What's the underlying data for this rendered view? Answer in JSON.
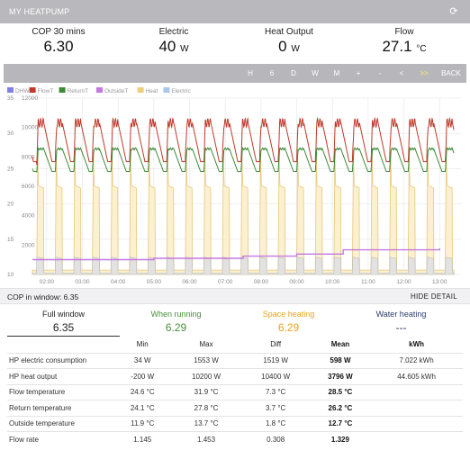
{
  "header": {
    "title": "MY HEATPUMP",
    "refresh_icon": "refresh-icon"
  },
  "stats": [
    {
      "label": "COP 30 mins",
      "value": "6.30",
      "unit": ""
    },
    {
      "label": "Electric",
      "value": "40",
      "unit": "W"
    },
    {
      "label": "Heat Output",
      "value": "0",
      "unit": "W"
    },
    {
      "label": "Flow",
      "value": "27.1",
      "unit": "°C"
    }
  ],
  "toolbar": {
    "buttons": [
      "H",
      "6",
      "D",
      "W",
      "M",
      "+",
      "-",
      "<",
      ">>",
      "BACK"
    ],
    "highlighted": ">>",
    "highlight_color": "#ffef6b"
  },
  "chart_data": {
    "type": "line",
    "legend": [
      "DHW",
      "FlowT",
      "ReturnT",
      "OutsideT",
      "Heat",
      "Electric"
    ],
    "legend_colors": [
      "#7f7fe6",
      "#c0392b",
      "#3d8b37",
      "#c478e0",
      "#f0cf7a",
      "#a8c8ee"
    ],
    "x_ticks": [
      "02:00",
      "03:00",
      "04:00",
      "05:00",
      "06:00",
      "07:00",
      "08:00",
      "09:00",
      "10:00",
      "11:00",
      "12:00",
      "13:00"
    ],
    "y_left_ticks": [
      "10",
      "15",
      "20",
      "25",
      "30",
      "35"
    ],
    "y_left_range": [
      10,
      35
    ],
    "y_right_ticks": [
      "2000",
      "4000",
      "6000",
      "8000",
      "10000",
      "12000"
    ],
    "y_right_range": [
      0,
      12000
    ],
    "x_range_hours": [
      1.6,
      13.6
    ],
    "series": [
      {
        "name": "FlowT",
        "axis": "left",
        "color": "#c0392b",
        "cycle_hours": 0.52,
        "low": 26,
        "high": 31.5
      },
      {
        "name": "ReturnT",
        "axis": "left",
        "color": "#3d8b37",
        "cycle_hours": 0.52,
        "low": 24.6,
        "high": 27.8
      },
      {
        "name": "Heat",
        "axis": "right",
        "color": "#f0cf7a",
        "cycle_hours": 0.52,
        "low": 0,
        "high": 9800
      },
      {
        "name": "Electric",
        "axis": "right",
        "color": "#c9c9c9",
        "cycle_hours": 0.52,
        "low": 0,
        "high": 1400
      },
      {
        "name": "OutsideT",
        "axis": "left",
        "color": "#c478e0",
        "values": [
          [
            1.6,
            12.1
          ],
          [
            3.5,
            12.1
          ],
          [
            5.0,
            12.3
          ],
          [
            7.5,
            12.6
          ],
          [
            9.0,
            12.9
          ],
          [
            10.3,
            13.5
          ],
          [
            13.0,
            13.7
          ]
        ]
      }
    ],
    "grid": true
  },
  "window": {
    "label": "COP in window: 6.35",
    "hide_label": "HIDE DETAIL"
  },
  "modes": [
    {
      "label": "Full window",
      "value": "6.35",
      "color": "#222222",
      "active": true
    },
    {
      "label": "When running",
      "value": "6.29",
      "color": "#4a8f3b",
      "active": false
    },
    {
      "label": "Space heating",
      "value": "6.29",
      "color": "#e8a321",
      "active": false
    },
    {
      "label": "Water heating",
      "value": "---",
      "color": "#2c3e6b",
      "active": false
    }
  ],
  "table": {
    "headers": [
      "",
      "Min",
      "Max",
      "Diff",
      "Mean",
      "kWh"
    ],
    "rows": [
      [
        "HP electric consumption",
        "34 W",
        "1553 W",
        "1519 W",
        "598 W",
        "7.022 kWh"
      ],
      [
        "HP heat output",
        "-200 W",
        "10200 W",
        "10400 W",
        "3796 W",
        "44.605 kWh"
      ],
      [
        "Flow temperature",
        "24.6 °C",
        "31.9 °C",
        "7.3 °C",
        "28.5 °C",
        ""
      ],
      [
        "Return temperature",
        "24.1 °C",
        "27.8 °C",
        "3.7 °C",
        "26.2 °C",
        ""
      ],
      [
        "Outside temperature",
        "11.9 °C",
        "13.7 °C",
        "1.8 °C",
        "12.7 °C",
        ""
      ],
      [
        "Flow rate",
        "1.145",
        "1.453",
        "0.308",
        "1.329",
        ""
      ]
    ]
  }
}
